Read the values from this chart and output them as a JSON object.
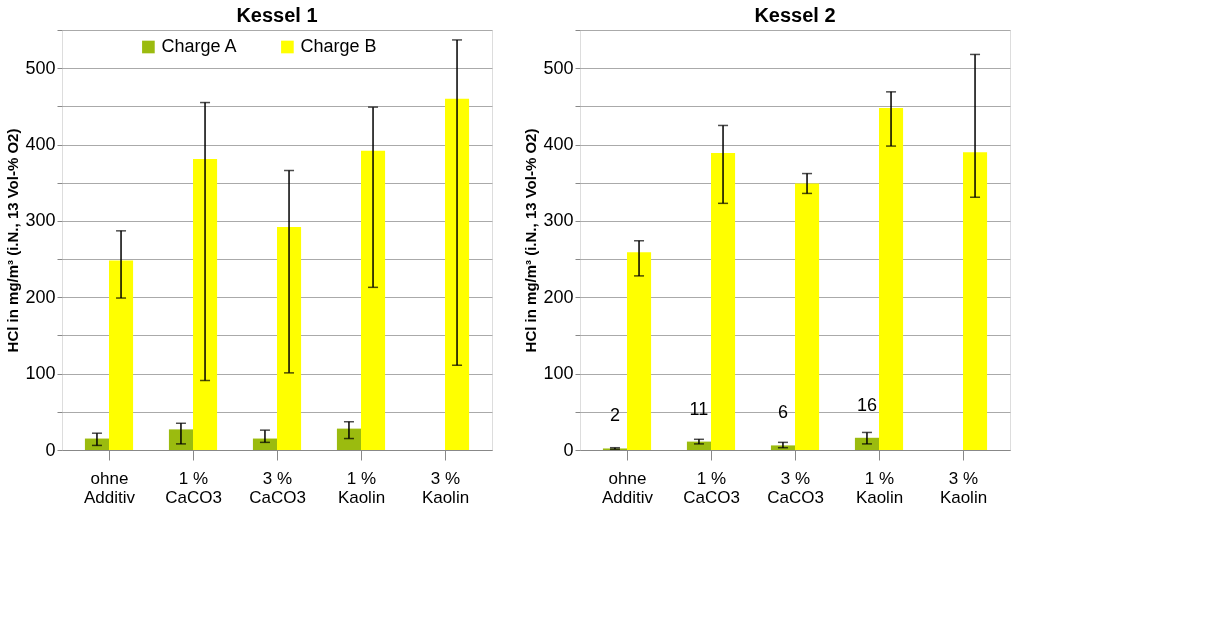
{
  "chart_data": [
    {
      "type": "bar",
      "title": "Kessel 1",
      "ylabel": "HCl in mg/m³ (i.N., 13 Vol-% O2)",
      "categories": [
        "ohne\nAdditiv",
        "1 %\nCaCO3",
        "3 %\nCaCO3",
        "1 %\nKaolin",
        "3 %\nKaolin"
      ],
      "series": [
        {
          "name": "Charge A",
          "color": "#9bbb0f",
          "values": [
            15,
            27,
            15,
            28,
            null
          ],
          "errors": [
            [
              6,
              22
            ],
            [
              8,
              35
            ],
            [
              10,
              26
            ],
            [
              15,
              37
            ],
            null
          ]
        },
        {
          "name": "Charge B",
          "color": "#ffff00",
          "values": [
            248,
            381,
            292,
            392,
            460
          ],
          "errors": [
            [
              199,
              287
            ],
            [
              91,
              455
            ],
            [
              101,
              366
            ],
            [
              213,
              449
            ],
            [
              111,
              537
            ]
          ]
        }
      ],
      "ylim": [
        0,
        550
      ],
      "yticks": [
        0,
        {
          "value": 50,
          "label": null
        },
        100,
        {
          "value": 150,
          "label": null
        },
        200,
        {
          "value": 250,
          "label": null
        },
        300,
        {
          "value": 350,
          "label": null
        },
        400,
        {
          "value": 450,
          "label": null
        },
        500,
        {
          "value": 550,
          "label": null
        }
      ],
      "grid": "y",
      "legend": "top"
    },
    {
      "type": "bar",
      "title": "Kessel 2",
      "ylabel": "HCl in mg/m³ (i.N., 13 Vol-% O2)",
      "categories": [
        "ohne\nAdditiv",
        "1 %\nCaCO3",
        "3 %\nCaCO3",
        "1 %\nKaolin",
        "3 %\nKaolin"
      ],
      "series": [
        {
          "name": "Charge A",
          "color": "#9bbb0f",
          "values": [
            2,
            11,
            6,
            16,
            null
          ],
          "errors": [
            [
              1,
              3
            ],
            [
              8,
              14
            ],
            [
              3,
              10
            ],
            [
              8,
              23
            ],
            null
          ],
          "value_labels": [
            "2",
            "11",
            "6",
            "16",
            null
          ]
        },
        {
          "name": "Charge B",
          "color": "#ffff00",
          "values": [
            259,
            389,
            349,
            448,
            390
          ],
          "errors": [
            [
              228,
              274
            ],
            [
              323,
              425
            ],
            [
              336,
              362
            ],
            [
              398,
              469
            ],
            [
              331,
              518
            ]
          ]
        }
      ],
      "ylim": [
        0,
        550
      ],
      "yticks": [
        0,
        {
          "value": 50,
          "label": null
        },
        100,
        {
          "value": 150,
          "label": null
        },
        200,
        {
          "value": 250,
          "label": null
        },
        300,
        {
          "value": 350,
          "label": null
        },
        400,
        {
          "value": 450,
          "label": null
        },
        500,
        {
          "value": 550,
          "label": null
        }
      ],
      "grid": "y",
      "legend": "top"
    }
  ]
}
